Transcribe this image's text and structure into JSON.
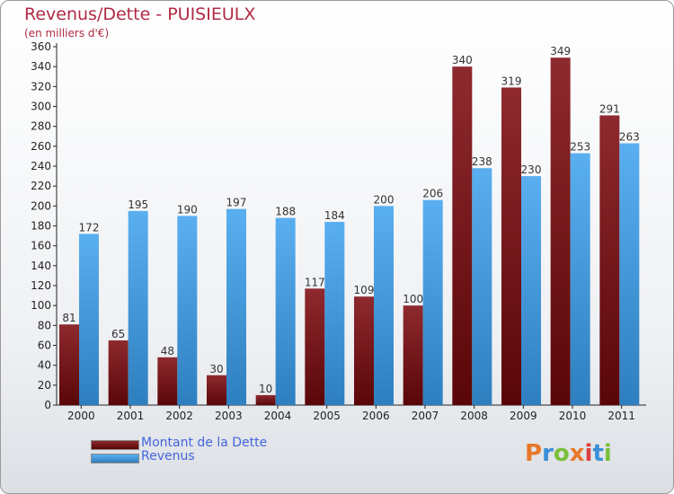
{
  "colors": {
    "dette": "#7a1a1e",
    "revenus": "#3f97dc"
  },
  "chart_data": {
    "type": "bar",
    "title": "Revenus/Dette - PUISIEULX",
    "subtitle": "(en milliers d'€)",
    "categories": [
      "2000",
      "2001",
      "2002",
      "2003",
      "2004",
      "2005",
      "2006",
      "2007",
      "2008",
      "2009",
      "2010",
      "2011"
    ],
    "series": [
      {
        "name": "Montant de la Dette",
        "values": [
          81,
          65,
          48,
          30,
          10,
          117,
          109,
          100,
          340,
          319,
          349,
          291
        ]
      },
      {
        "name": "Revenus",
        "values": [
          172,
          195,
          190,
          197,
          188,
          184,
          200,
          206,
          238,
          230,
          253,
          263
        ]
      }
    ],
    "ylim": [
      0,
      360
    ],
    "yticks": [
      "0",
      "20",
      "40",
      "60",
      "80",
      "100",
      "120",
      "140",
      "160",
      "180",
      "200",
      "220",
      "240",
      "260",
      "280",
      "300",
      "320",
      "340",
      "360"
    ],
    "grid": false,
    "legend_position": "bottom-left"
  },
  "logo": {
    "text": "Proxiti"
  }
}
